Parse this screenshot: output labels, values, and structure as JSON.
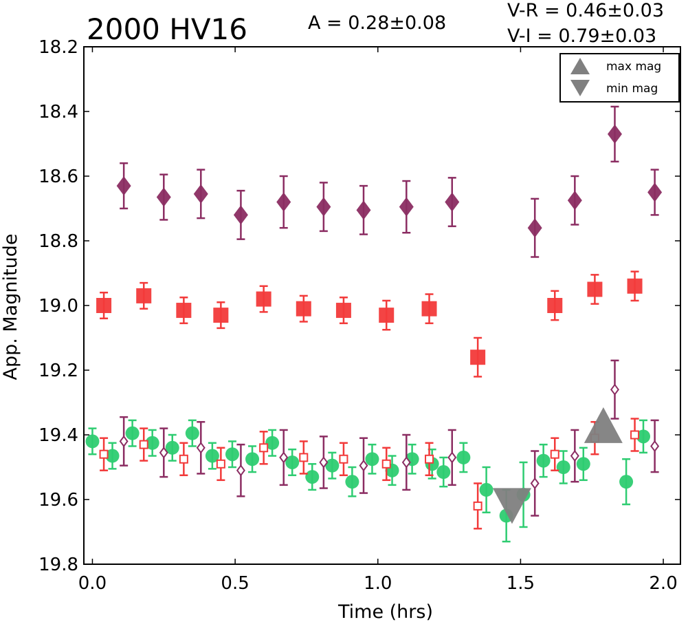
{
  "chart_data": {
    "type": "scatter",
    "title": "2000 HV16",
    "amplitude_label": "A  = 0.28±0.08",
    "color_label_1": "V-R = 0.46±0.03",
    "color_label_2": "V-I  = 0.79±0.03",
    "xlabel": "Time (hrs)",
    "ylabel": "App. Magnitude",
    "xlim": [
      -0.03,
      2.06
    ],
    "ylim": [
      19.8,
      18.2
    ],
    "xticks": [
      "0.0",
      "0.5",
      "1.0",
      "1.5",
      "2.0"
    ],
    "xtick_values": [
      0,
      0.5,
      1.0,
      1.5,
      2.0
    ],
    "yticks": [
      "18.2",
      "18.4",
      "18.6",
      "18.8",
      "19.0",
      "19.2",
      "19.4",
      "19.6",
      "19.8"
    ],
    "ytick_values": [
      18.2,
      18.4,
      18.6,
      18.8,
      19.0,
      19.2,
      19.4,
      19.6,
      19.8
    ],
    "legend": {
      "placement": "top-right",
      "entries": [
        {
          "label": "max mag",
          "marker": "triangle-up"
        },
        {
          "label": "min mag",
          "marker": "triangle-down"
        }
      ]
    },
    "series": [
      {
        "marker": "diamond",
        "filled": true,
        "color": "#8b2d62",
        "points": [
          {
            "x": 0.11,
            "y": 18.63,
            "err": 0.07
          },
          {
            "x": 0.25,
            "y": 18.665,
            "err": 0.07
          },
          {
            "x": 0.38,
            "y": 18.655,
            "err": 0.075
          },
          {
            "x": 0.52,
            "y": 18.72,
            "err": 0.075
          },
          {
            "x": 0.67,
            "y": 18.68,
            "err": 0.08
          },
          {
            "x": 0.81,
            "y": 18.695,
            "err": 0.075
          },
          {
            "x": 0.95,
            "y": 18.705,
            "err": 0.075
          },
          {
            "x": 1.1,
            "y": 18.695,
            "err": 0.08
          },
          {
            "x": 1.26,
            "y": 18.68,
            "err": 0.075
          },
          {
            "x": 1.55,
            "y": 18.76,
            "err": 0.09
          },
          {
            "x": 1.69,
            "y": 18.675,
            "err": 0.075
          },
          {
            "x": 1.83,
            "y": 18.47,
            "err": 0.085
          },
          {
            "x": 1.97,
            "y": 18.65,
            "err": 0.07
          }
        ]
      },
      {
        "marker": "square",
        "filled": true,
        "color": "#f23a3a",
        "points": [
          {
            "x": 0.04,
            "y": 19.0,
            "err": 0.04
          },
          {
            "x": 0.18,
            "y": 18.97,
            "err": 0.04
          },
          {
            "x": 0.32,
            "y": 19.015,
            "err": 0.04
          },
          {
            "x": 0.45,
            "y": 19.03,
            "err": 0.04
          },
          {
            "x": 0.6,
            "y": 18.98,
            "err": 0.04
          },
          {
            "x": 0.74,
            "y": 19.01,
            "err": 0.04
          },
          {
            "x": 0.88,
            "y": 19.015,
            "err": 0.04
          },
          {
            "x": 1.03,
            "y": 19.03,
            "err": 0.045
          },
          {
            "x": 1.18,
            "y": 19.01,
            "err": 0.045
          },
          {
            "x": 1.35,
            "y": 19.16,
            "err": 0.06
          },
          {
            "x": 1.62,
            "y": 19.0,
            "err": 0.045
          },
          {
            "x": 1.76,
            "y": 18.95,
            "err": 0.045
          },
          {
            "x": 1.9,
            "y": 18.94,
            "err": 0.045
          }
        ]
      },
      {
        "marker": "circle",
        "filled": true,
        "color": "#2ecc71",
        "points": [
          {
            "x": 0.0,
            "y": 19.42,
            "err": 0.04
          },
          {
            "x": 0.07,
            "y": 19.465,
            "err": 0.04
          },
          {
            "x": 0.14,
            "y": 19.395,
            "err": 0.04
          },
          {
            "x": 0.21,
            "y": 19.425,
            "err": 0.04
          },
          {
            "x": 0.28,
            "y": 19.44,
            "err": 0.04
          },
          {
            "x": 0.35,
            "y": 19.395,
            "err": 0.04
          },
          {
            "x": 0.42,
            "y": 19.465,
            "err": 0.04
          },
          {
            "x": 0.49,
            "y": 19.46,
            "err": 0.04
          },
          {
            "x": 0.56,
            "y": 19.475,
            "err": 0.04
          },
          {
            "x": 0.63,
            "y": 19.425,
            "err": 0.04
          },
          {
            "x": 0.7,
            "y": 19.485,
            "err": 0.04
          },
          {
            "x": 0.77,
            "y": 19.53,
            "err": 0.04
          },
          {
            "x": 0.84,
            "y": 19.495,
            "err": 0.04
          },
          {
            "x": 0.91,
            "y": 19.545,
            "err": 0.045
          },
          {
            "x": 0.98,
            "y": 19.475,
            "err": 0.045
          },
          {
            "x": 1.05,
            "y": 19.51,
            "err": 0.045
          },
          {
            "x": 1.12,
            "y": 19.475,
            "err": 0.045
          },
          {
            "x": 1.19,
            "y": 19.49,
            "err": 0.045
          },
          {
            "x": 1.23,
            "y": 19.515,
            "err": 0.045
          },
          {
            "x": 1.3,
            "y": 19.47,
            "err": 0.045
          },
          {
            "x": 1.38,
            "y": 19.57,
            "err": 0.07
          },
          {
            "x": 1.45,
            "y": 19.65,
            "err": 0.08
          },
          {
            "x": 1.51,
            "y": 19.585,
            "err": 0.1
          },
          {
            "x": 1.58,
            "y": 19.48,
            "err": 0.05
          },
          {
            "x": 1.65,
            "y": 19.5,
            "err": 0.05
          },
          {
            "x": 1.72,
            "y": 19.49,
            "err": 0.05
          },
          {
            "x": 1.87,
            "y": 19.545,
            "err": 0.07
          },
          {
            "x": 1.93,
            "y": 19.405,
            "err": 0.05
          }
        ]
      },
      {
        "marker": "square",
        "filled": false,
        "color": "#f23a3a",
        "points": [
          {
            "x": 0.04,
            "y": 19.46,
            "err": 0.05
          },
          {
            "x": 0.18,
            "y": 19.43,
            "err": 0.05
          },
          {
            "x": 0.32,
            "y": 19.475,
            "err": 0.05
          },
          {
            "x": 0.45,
            "y": 19.49,
            "err": 0.05
          },
          {
            "x": 0.6,
            "y": 19.44,
            "err": 0.05
          },
          {
            "x": 0.74,
            "y": 19.47,
            "err": 0.05
          },
          {
            "x": 0.88,
            "y": 19.475,
            "err": 0.05
          },
          {
            "x": 1.03,
            "y": 19.49,
            "err": 0.05
          },
          {
            "x": 1.18,
            "y": 19.475,
            "err": 0.05
          },
          {
            "x": 1.35,
            "y": 19.62,
            "err": 0.07
          },
          {
            "x": 1.62,
            "y": 19.46,
            "err": 0.05
          },
          {
            "x": 1.76,
            "y": 19.41,
            "err": 0.05
          },
          {
            "x": 1.9,
            "y": 19.4,
            "err": 0.05
          }
        ]
      },
      {
        "marker": "diamond",
        "filled": false,
        "color": "#8b2d62",
        "points": [
          {
            "x": 0.11,
            "y": 19.42,
            "err": 0.075
          },
          {
            "x": 0.25,
            "y": 19.455,
            "err": 0.075
          },
          {
            "x": 0.38,
            "y": 19.44,
            "err": 0.08
          },
          {
            "x": 0.52,
            "y": 19.51,
            "err": 0.08
          },
          {
            "x": 0.67,
            "y": 19.47,
            "err": 0.085
          },
          {
            "x": 0.81,
            "y": 19.485,
            "err": 0.08
          },
          {
            "x": 0.95,
            "y": 19.495,
            "err": 0.085
          },
          {
            "x": 1.1,
            "y": 19.485,
            "err": 0.085
          },
          {
            "x": 1.26,
            "y": 19.47,
            "err": 0.085
          },
          {
            "x": 1.55,
            "y": 19.55,
            "err": 0.1
          },
          {
            "x": 1.69,
            "y": 19.465,
            "err": 0.08
          },
          {
            "x": 1.83,
            "y": 19.26,
            "err": 0.09
          },
          {
            "x": 1.97,
            "y": 19.435,
            "err": 0.08
          }
        ]
      }
    ],
    "extrema": [
      {
        "marker": "triangle-up",
        "x": 1.79,
        "y": 19.37,
        "color": "#808080"
      },
      {
        "marker": "triangle-down",
        "x": 1.47,
        "y": 19.62,
        "color": "#808080"
      }
    ]
  }
}
